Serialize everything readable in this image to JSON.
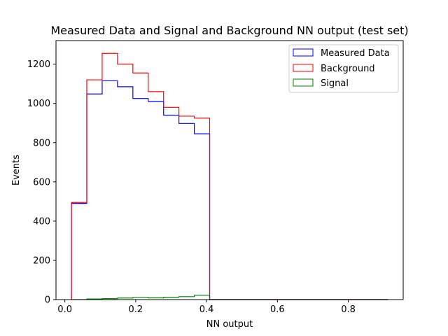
{
  "chart_data": {
    "type": "histogram",
    "title": "Measured Data and Signal and Background NN output (test set)",
    "xlabel": "NN output",
    "ylabel": "Events",
    "xlim": [
      -0.025,
      0.955
    ],
    "ylim": [
      0,
      1320
    ],
    "xticks": [
      0.0,
      0.2,
      0.4,
      0.6,
      0.8
    ],
    "xtick_labels": [
      "0.0",
      "0.2",
      "0.4",
      "0.6",
      "0.8"
    ],
    "yticks": [
      0,
      200,
      400,
      600,
      800,
      1000,
      1200
    ],
    "ytick_labels": [
      "0",
      "200",
      "400",
      "600",
      "800",
      "1000",
      "1200"
    ],
    "bin_edges": [
      0.0186,
      0.0619,
      0.1053,
      0.1486,
      0.192,
      0.2353,
      0.2787,
      0.322,
      0.3654,
      0.4087,
      0.4521,
      0.4954,
      0.5388,
      0.5821,
      0.6255,
      0.6688,
      0.7122,
      0.7555,
      0.7989,
      0.8422,
      0.8856,
      0.912
    ],
    "legend_position": "upper right",
    "series": [
      {
        "name": "Measured Data",
        "color": "#0000ff",
        "values": [
          490,
          1048,
          1115,
          1085,
          1025,
          1010,
          940,
          898,
          845,
          0,
          0,
          0,
          0,
          0,
          0,
          0,
          0,
          0,
          0,
          0,
          0
        ]
      },
      {
        "name": "Background",
        "color": "#ff0000",
        "values": [
          495,
          1120,
          1255,
          1200,
          1155,
          1060,
          980,
          935,
          925,
          0,
          0,
          0,
          0,
          0,
          0,
          0,
          0,
          0,
          0,
          0,
          0
        ]
      },
      {
        "name": "Signal",
        "color": "#008000",
        "values": [
          0,
          3,
          5,
          8,
          11,
          9,
          12,
          15,
          22,
          0,
          0,
          0,
          0,
          0,
          0,
          0,
          0,
          0,
          0,
          0,
          0
        ]
      }
    ]
  }
}
